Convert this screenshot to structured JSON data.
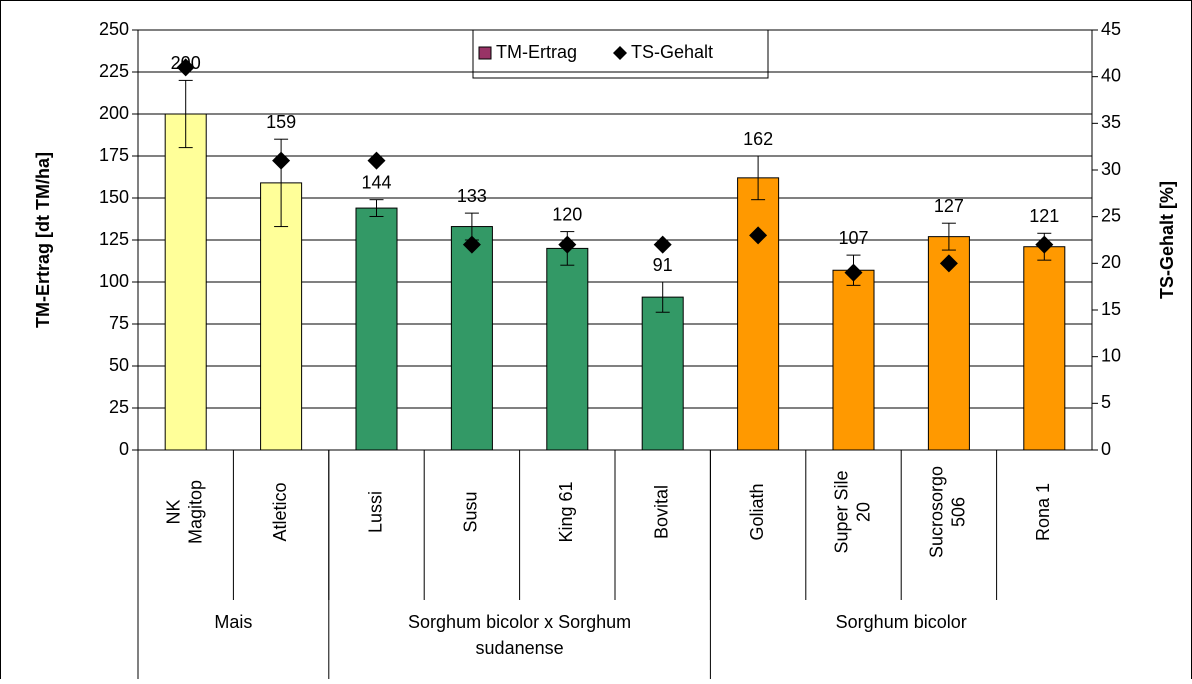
{
  "chart_data": {
    "type": "bar",
    "categories": [
      [
        "NK",
        "Magitop"
      ],
      [
        "Atletico"
      ],
      [
        "Lussi"
      ],
      [
        "Susu"
      ],
      [
        "King 61"
      ],
      [
        "Bovital"
      ],
      [
        "Goliath"
      ],
      [
        "Super Sile",
        "20"
      ],
      [
        "Sucrosorgo",
        "506"
      ],
      [
        "Rona 1"
      ]
    ],
    "groups": [
      {
        "name": [
          "Mais"
        ],
        "span": 2
      },
      {
        "name": [
          "Sorghum bicolor x  Sorghum",
          "sudanense"
        ],
        "span": 4
      },
      {
        "name": [
          "Sorghum bicolor"
        ],
        "span": 4
      }
    ],
    "series": [
      {
        "name": "TM-Ertrag",
        "color": "#993366",
        "values": [
          200,
          159,
          144,
          133,
          120,
          91,
          162,
          107,
          127,
          121
        ],
        "errors": [
          20,
          26,
          5,
          8,
          10,
          9,
          13,
          9,
          8,
          8
        ],
        "colors": [
          "#ffff99",
          "#ffff99",
          "#339966",
          "#339966",
          "#339966",
          "#339966",
          "#ff9900",
          "#ff9900",
          "#ff9900",
          "#ff9900"
        ]
      },
      {
        "name": "TS-Gehalt",
        "color": "#000000",
        "axis": "y2",
        "marker": "diamond",
        "values": [
          41,
          31,
          31,
          22,
          22,
          22,
          23,
          19,
          20,
          22
        ]
      }
    ],
    "ylabel": "TM-Ertrag [dt TM/ha]",
    "y2label": "TS-Gehalt [%]",
    "ylim": [
      0,
      250
    ],
    "yticks": [
      0,
      25,
      50,
      75,
      100,
      125,
      150,
      175,
      200,
      225,
      250
    ],
    "y2lim": [
      0,
      45
    ],
    "y2ticks": [
      0,
      5,
      10,
      15,
      20,
      25,
      30,
      35,
      40,
      45
    ],
    "legend": "top"
  }
}
